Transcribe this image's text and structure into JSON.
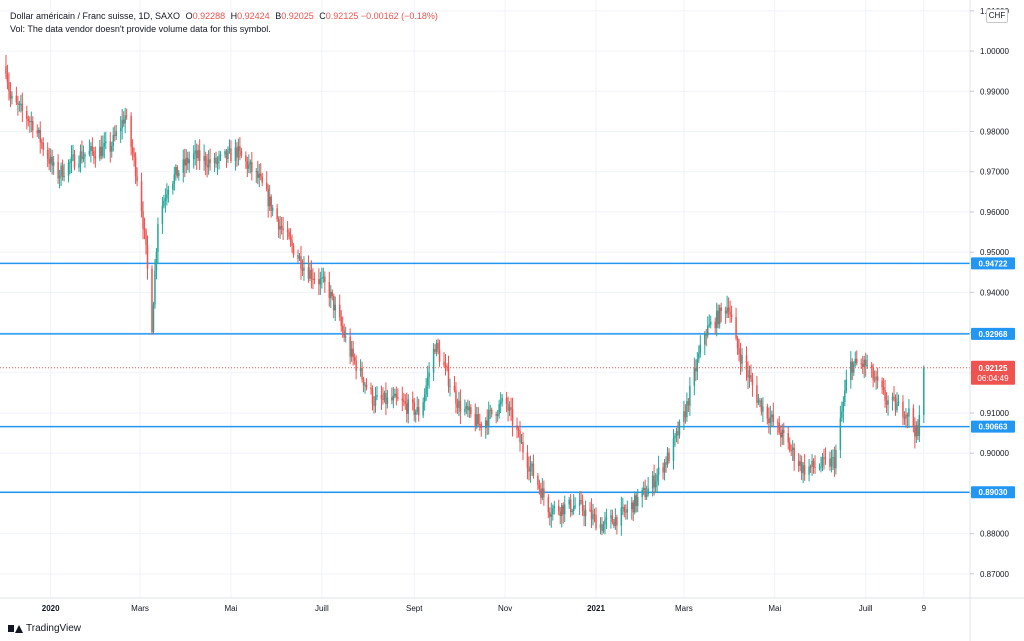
{
  "legend": {
    "symbol": "Dollar américain / Franc suisse, 1D, SAXO",
    "o_label": "O",
    "o_value": "0.92288",
    "h_label": "H",
    "h_value": "0.92424",
    "b_label": "B",
    "b_value": "0.92025",
    "c_label": "C",
    "c_value": "0.92125",
    "change": "−0.00162 (−0.18%)",
    "volume_note": "Vol: The data vendor doesn't provide volume data for this symbol."
  },
  "currency_badge": "CHF",
  "branding": "TradingView",
  "colors": {
    "up": "#26a69a",
    "down": "#ef5350",
    "hline": "#2196f3",
    "grid": "#f0f3fa",
    "axis_text": "#131722",
    "price_label_bg": "#ef5350"
  },
  "chart_data": {
    "type": "candlestick",
    "title": "Dollar américain / Franc suisse, 1D, SAXO",
    "ylim": [
      0.864,
      1.0127
    ],
    "y_ticks": [
      "1.01000",
      "1.00000",
      "0.99000",
      "0.98000",
      "0.97000",
      "0.96000",
      "0.95000",
      "0.94000",
      "0.93000",
      "0.92000",
      "0.91000",
      "0.90000",
      "0.89000",
      "0.88000",
      "0.87000"
    ],
    "x_ticks": [
      "2020",
      "Mars",
      "Mai",
      "Juill",
      "Sept",
      "Nov",
      "2021",
      "Mars",
      "Mai",
      "Juill",
      "9"
    ],
    "x_tick_dates": [
      "2020-01-01",
      "2020-03-01",
      "2020-05-01",
      "2020-07-01",
      "2020-09-01",
      "2020-11-01",
      "2021-01-01",
      "2021-03-01",
      "2021-05-01",
      "2021-07-01",
      "2021-08-09"
    ],
    "x_range": [
      "2019-11-28",
      "2021-09-09"
    ],
    "last_date": "2021-08-09",
    "horizontal_lines": [
      0.94722,
      0.92968,
      0.90663,
      0.8903
    ],
    "horizontal_line_labels": [
      "0.94722",
      "0.92968",
      "0.90663",
      "0.89030"
    ],
    "current_price": 0.92125,
    "current_price_label": "0.92125",
    "countdown_label": "06:04:49",
    "grid": true,
    "series": [
      {
        "name": "",
        "anchors_date": [
          "2019-12-01",
          "2019-12-05",
          "2019-12-20",
          "2020-01-05",
          "2020-01-20",
          "2020-02-10",
          "2020-02-20",
          "2020-03-01",
          "2020-03-05",
          "2020-03-09",
          "2020-03-13",
          "2020-03-20",
          "2020-04-05",
          "2020-04-20",
          "2020-05-05",
          "2020-05-20",
          "2020-06-05",
          "2020-06-20",
          "2020-07-05",
          "2020-07-20",
          "2020-08-05",
          "2020-08-20",
          "2020-09-05",
          "2020-09-15",
          "2020-10-01",
          "2020-10-15",
          "2020-11-01",
          "2020-11-15",
          "2020-12-01",
          "2020-12-20",
          "2021-01-05",
          "2021-01-20",
          "2021-02-05",
          "2021-02-20",
          "2021-03-01",
          "2021-03-15",
          "2021-03-31",
          "2021-04-05",
          "2021-04-20",
          "2021-05-05",
          "2021-05-20",
          "2021-06-01",
          "2021-06-10",
          "2021-06-20",
          "2021-07-01",
          "2021-07-15",
          "2021-07-30",
          "2021-08-05",
          "2021-08-09"
        ],
        "anchors_close": [
          0.999,
          0.988,
          0.982,
          0.969,
          0.974,
          0.976,
          0.984,
          0.965,
          0.95,
          0.932,
          0.958,
          0.967,
          0.974,
          0.972,
          0.975,
          0.968,
          0.955,
          0.946,
          0.941,
          0.925,
          0.913,
          0.913,
          0.91,
          0.927,
          0.912,
          0.907,
          0.913,
          0.899,
          0.886,
          0.887,
          0.882,
          0.885,
          0.891,
          0.9,
          0.909,
          0.93,
          0.937,
          0.927,
          0.913,
          0.905,
          0.896,
          0.897,
          0.898,
          0.922,
          0.922,
          0.913,
          0.91,
          0.904,
          0.92125
        ]
      }
    ]
  }
}
